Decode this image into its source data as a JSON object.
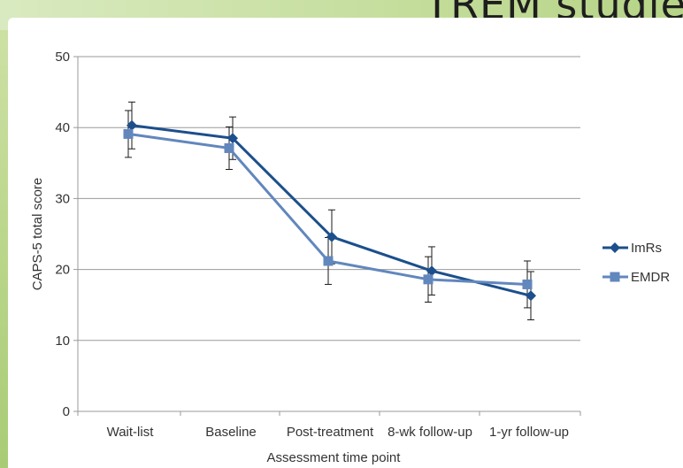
{
  "slide": {
    "title": "TREM studie"
  },
  "chart_data": {
    "type": "line",
    "categories": [
      "Wait-list",
      "Baseline",
      "Post-treatment",
      "8-wk follow-up",
      "1-yr follow-up"
    ],
    "xlabel": "Assessment time point",
    "ylabel": "CAPS-5 total score",
    "ylim": [
      0,
      50
    ],
    "yticks": [
      0,
      10,
      20,
      30,
      40,
      50
    ],
    "grid": "horizontal",
    "legend": "right",
    "series": [
      {
        "name": "ImRs",
        "color": "#1c4f8c",
        "marker": "diamond",
        "values": [
          40.3,
          38.5,
          24.6,
          19.8,
          16.3
        ],
        "error": [
          3.3,
          3.0,
          3.8,
          3.4,
          3.4
        ]
      },
      {
        "name": "EMDR",
        "color": "#6187bd",
        "marker": "square",
        "values": [
          39.1,
          37.1,
          21.2,
          18.6,
          17.9
        ],
        "error": [
          3.3,
          3.0,
          3.3,
          3.2,
          3.3
        ]
      }
    ]
  }
}
